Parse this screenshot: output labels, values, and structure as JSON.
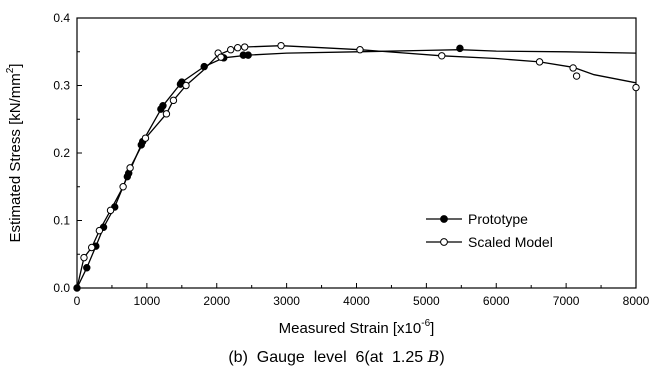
{
  "chart_data": {
    "type": "line",
    "xlabel": "Measured Strain [x10",
    "xlabel_exponent": "-6",
    "xlabel_close": "]",
    "ylabel": "Estimated Stress [kN/mm",
    "ylabel_exponent": "2",
    "ylabel_close": "]",
    "xlim": [
      0,
      8000
    ],
    "ylim": [
      0.0,
      0.4
    ],
    "x_ticks": [
      "0",
      "1000",
      "2000",
      "3000",
      "4000",
      "5000",
      "6000",
      "7000",
      "8000"
    ],
    "y_ticks": [
      "0.0",
      "0.1",
      "0.2",
      "0.3",
      "0.4"
    ],
    "grid": false,
    "legend_position": "lower-right",
    "series": [
      {
        "name": "Prototype",
        "marker": "filled-circle",
        "color": "#000000",
        "x": [
          0,
          140,
          270,
          380,
          540,
          720,
          740,
          920,
          940,
          1200,
          1230,
          1480,
          1500,
          1820,
          2100,
          2380,
          2450,
          5480
        ],
        "y": [
          0,
          0.03,
          0.062,
          0.09,
          0.12,
          0.165,
          0.17,
          0.212,
          0.217,
          0.265,
          0.27,
          0.302,
          0.305,
          0.328,
          0.341,
          0.345,
          0.345,
          0.355
        ],
        "line_x": [
          0,
          140,
          270,
          380,
          540,
          740,
          940,
          1230,
          1500,
          1820,
          2100,
          2450,
          3000,
          4000,
          5000,
          5480,
          6000,
          7000,
          8000
        ],
        "line_y": [
          0,
          0.03,
          0.062,
          0.09,
          0.12,
          0.17,
          0.217,
          0.27,
          0.305,
          0.328,
          0.341,
          0.345,
          0.348,
          0.35,
          0.352,
          0.353,
          0.351,
          0.35,
          0.348
        ]
      },
      {
        "name": "Scaled Model",
        "marker": "open-circle",
        "color": "#000000",
        "x": [
          100,
          210,
          320,
          480,
          660,
          760,
          980,
          1280,
          1380,
          1560,
          2020,
          2060,
          2200,
          2300,
          2400,
          2920,
          4050,
          5220,
          6620,
          7100,
          7150,
          8000
        ],
        "y": [
          0.045,
          0.06,
          0.085,
          0.115,
          0.15,
          0.178,
          0.222,
          0.258,
          0.278,
          0.3,
          0.348,
          0.342,
          0.353,
          0.356,
          0.357,
          0.359,
          0.353,
          0.344,
          0.335,
          0.326,
          0.314,
          0.297
        ],
        "line_x": [
          0,
          100,
          210,
          320,
          480,
          660,
          760,
          980,
          1280,
          1380,
          1560,
          1800,
          2020,
          2200,
          2400,
          2920,
          3500,
          4050,
          5220,
          6000,
          6620,
          7100,
          7400,
          8000
        ],
        "line_y": [
          0,
          0.045,
          0.06,
          0.085,
          0.115,
          0.15,
          0.178,
          0.222,
          0.258,
          0.278,
          0.3,
          0.322,
          0.345,
          0.353,
          0.357,
          0.359,
          0.356,
          0.353,
          0.344,
          0.34,
          0.335,
          0.327,
          0.316,
          0.304
        ]
      }
    ]
  },
  "caption": {
    "prefix": "(b)  Gauge  level  6(at  1.25 ",
    "math": "B",
    "suffix": ")"
  }
}
